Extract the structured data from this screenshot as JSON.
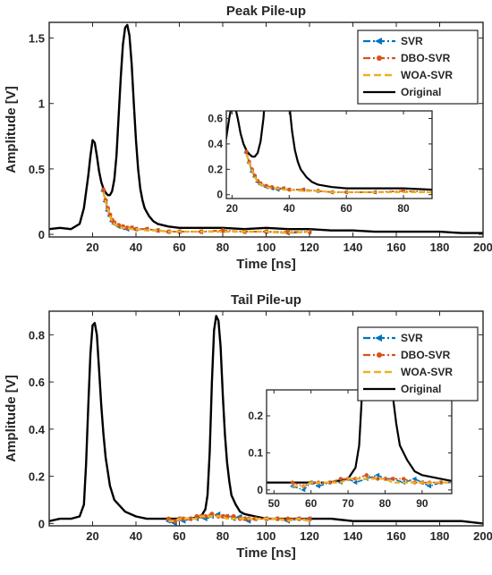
{
  "colors": {
    "SVR": "#0072BD",
    "DBO-SVR": "#D95319",
    "WOA-SVR": "#EDB120",
    "Original": "#000000"
  },
  "chart_data": [
    {
      "type": "line",
      "title": "Peak Pile-up",
      "xlabel": "Time [ns]",
      "ylabel": "Amplitude [V]",
      "xlim": [
        0,
        200
      ],
      "ylim": [
        -0.02,
        1.62
      ],
      "xticks": [
        "20",
        "40",
        "60",
        "80",
        "100",
        "120",
        "140",
        "160",
        "180",
        "200"
      ],
      "yticks": [
        "0",
        "0.5",
        "1",
        "1.5"
      ],
      "legend_position": "top-right",
      "series": [
        {
          "name": "SVR",
          "style": "dash-dot, left-arrow markers"
        },
        {
          "name": "DBO-SVR",
          "style": "dash-dot, circle markers"
        },
        {
          "name": "WOA-SVR",
          "style": "dashed"
        },
        {
          "name": "Original",
          "style": "solid"
        }
      ],
      "original": {
        "x": [
          0,
          5,
          10,
          14,
          16,
          18,
          19,
          20,
          21,
          22,
          23,
          24,
          25,
          26,
          27,
          28,
          29,
          30,
          31,
          32,
          33,
          34,
          35,
          36,
          37,
          38,
          39,
          40,
          41,
          42,
          43,
          44,
          45,
          46,
          48,
          50,
          55,
          60,
          70,
          80,
          90,
          100,
          110,
          120,
          130,
          140,
          150,
          160,
          170,
          180,
          190,
          200
        ],
        "y": [
          0.04,
          0.05,
          0.04,
          0.08,
          0.2,
          0.45,
          0.6,
          0.72,
          0.7,
          0.6,
          0.48,
          0.4,
          0.35,
          0.32,
          0.3,
          0.3,
          0.33,
          0.42,
          0.6,
          0.9,
          1.2,
          1.45,
          1.58,
          1.6,
          1.52,
          1.3,
          1.0,
          0.72,
          0.5,
          0.35,
          0.26,
          0.2,
          0.17,
          0.14,
          0.1,
          0.08,
          0.06,
          0.05,
          0.05,
          0.05,
          0.04,
          0.05,
          0.04,
          0.04,
          0.03,
          0.03,
          0.02,
          0.02,
          0.02,
          0.02,
          0.01,
          0.01
        ]
      },
      "svr": {
        "x": [
          25,
          26,
          27,
          28,
          29,
          30,
          32,
          34,
          36,
          38,
          40,
          45,
          50,
          55,
          60,
          70,
          80,
          90,
          100,
          110,
          120
        ],
        "y": [
          0.33,
          0.25,
          0.18,
          0.14,
          0.1,
          0.08,
          0.06,
          0.05,
          0.04,
          0.05,
          0.04,
          0.04,
          0.03,
          0.02,
          0.02,
          0.02,
          0.03,
          0.02,
          0.02,
          0.01,
          0.02
        ]
      },
      "dbo": {
        "x": [
          25,
          26,
          27,
          28,
          29,
          30,
          32,
          34,
          36,
          38,
          40,
          45,
          50,
          55,
          60,
          70,
          80,
          90,
          100,
          110,
          120
        ],
        "y": [
          0.34,
          0.26,
          0.2,
          0.15,
          0.11,
          0.09,
          0.07,
          0.06,
          0.05,
          0.05,
          0.04,
          0.04,
          0.03,
          0.02,
          0.02,
          0.02,
          0.03,
          0.02,
          0.02,
          0.02,
          0.02
        ]
      },
      "woa": {
        "x": [
          25,
          26,
          27,
          28,
          29,
          30,
          32,
          34,
          36,
          38,
          40,
          45,
          50,
          55,
          60,
          70,
          80,
          90,
          100,
          110,
          120
        ],
        "y": [
          0.32,
          0.25,
          0.19,
          0.14,
          0.1,
          0.08,
          0.06,
          0.05,
          0.05,
          0.04,
          0.04,
          0.03,
          0.03,
          0.02,
          0.02,
          0.02,
          0.02,
          0.02,
          0.02,
          0.01,
          0.02
        ]
      },
      "inset": {
        "xlim": [
          18,
          90
        ],
        "ylim": [
          -0.03,
          0.66
        ],
        "xticks": [
          "20",
          "40",
          "60",
          "80"
        ],
        "yticks": [
          "0",
          "0.2",
          "0.4",
          "0.6"
        ]
      }
    },
    {
      "type": "line",
      "title": "Tail Pile-up",
      "xlabel": "Time [ns]",
      "ylabel": "Amplitude [V]",
      "xlim": [
        0,
        200
      ],
      "ylim": [
        -0.01,
        0.9
      ],
      "xticks": [
        "20",
        "40",
        "60",
        "80",
        "100",
        "120",
        "140",
        "160",
        "180",
        "200"
      ],
      "yticks": [
        "0",
        "0.2",
        "0.4",
        "0.6",
        "0.8"
      ],
      "legend_position": "top-right",
      "series": [
        {
          "name": "SVR",
          "style": "dash-dot, left-arrow markers"
        },
        {
          "name": "DBO-SVR",
          "style": "dash-dot, circle markers"
        },
        {
          "name": "WOA-SVR",
          "style": "dashed"
        },
        {
          "name": "Original",
          "style": "solid"
        }
      ],
      "original": {
        "x": [
          0,
          5,
          10,
          14,
          16,
          17,
          18,
          19,
          20,
          21,
          22,
          23,
          24,
          25,
          26,
          28,
          30,
          35,
          40,
          45,
          50,
          55,
          60,
          65,
          70,
          72,
          73,
          74,
          75,
          76,
          77,
          78,
          79,
          80,
          81,
          82,
          83,
          84,
          86,
          88,
          90,
          95,
          100,
          110,
          120,
          130,
          140,
          150,
          160,
          170,
          180,
          190,
          200
        ],
        "y": [
          0.01,
          0.02,
          0.02,
          0.03,
          0.08,
          0.25,
          0.5,
          0.72,
          0.84,
          0.85,
          0.8,
          0.65,
          0.5,
          0.38,
          0.28,
          0.16,
          0.1,
          0.05,
          0.03,
          0.02,
          0.02,
          0.02,
          0.02,
          0.02,
          0.03,
          0.06,
          0.12,
          0.3,
          0.6,
          0.82,
          0.88,
          0.86,
          0.75,
          0.55,
          0.38,
          0.26,
          0.18,
          0.12,
          0.08,
          0.05,
          0.04,
          0.03,
          0.02,
          0.02,
          0.02,
          0.02,
          0.01,
          0.01,
          0.01,
          0.01,
          0.01,
          0.01,
          0.0
        ]
      },
      "svr": {
        "x": [
          55,
          58,
          60,
          62,
          65,
          68,
          70,
          72,
          75,
          78,
          80,
          82,
          85,
          88,
          90,
          92,
          95,
          100,
          105,
          110,
          115,
          120
        ],
        "y": [
          0.01,
          0.0,
          0.02,
          0.01,
          0.02,
          0.02,
          0.03,
          0.02,
          0.03,
          0.04,
          0.03,
          0.03,
          0.02,
          0.03,
          0.02,
          0.01,
          0.02,
          0.02,
          0.02,
          0.01,
          0.02,
          0.02
        ]
      },
      "dbo": {
        "x": [
          55,
          58,
          60,
          62,
          65,
          68,
          70,
          72,
          75,
          78,
          80,
          82,
          85,
          88,
          90,
          92,
          95,
          100,
          105,
          110,
          115,
          120
        ],
        "y": [
          0.02,
          0.01,
          0.02,
          0.02,
          0.02,
          0.03,
          0.03,
          0.03,
          0.04,
          0.03,
          0.03,
          0.03,
          0.03,
          0.02,
          0.02,
          0.02,
          0.02,
          0.02,
          0.02,
          0.02,
          0.02,
          0.02
        ]
      },
      "woa": {
        "x": [
          55,
          58,
          60,
          62,
          65,
          68,
          70,
          72,
          75,
          78,
          80,
          82,
          85,
          88,
          90,
          92,
          95,
          100,
          105,
          110,
          115,
          120
        ],
        "y": [
          0.01,
          0.01,
          0.02,
          0.02,
          0.02,
          0.02,
          0.03,
          0.03,
          0.03,
          0.03,
          0.03,
          0.02,
          0.02,
          0.02,
          0.02,
          0.02,
          0.02,
          0.02,
          0.02,
          0.01,
          0.02,
          0.01
        ]
      },
      "inset": {
        "xlim": [
          48,
          98
        ],
        "ylim": [
          -0.01,
          0.27
        ],
        "xticks": [
          "50",
          "60",
          "70",
          "80",
          "90"
        ],
        "yticks": [
          "0",
          "0.1",
          "0.2"
        ]
      }
    }
  ]
}
